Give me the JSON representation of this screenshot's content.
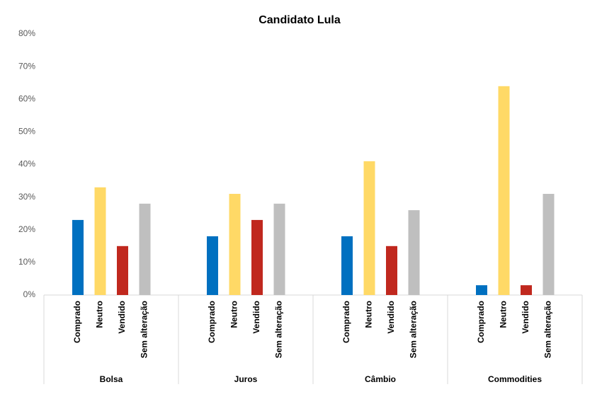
{
  "chart_data": {
    "type": "bar",
    "title": "Candidato Lula",
    "categories": [
      "Bolsa",
      "Juros",
      "Câmbio",
      "Commodities"
    ],
    "series": [
      {
        "name": "Comprado",
        "color": "#0070c0",
        "values": [
          23,
          18,
          18,
          3
        ]
      },
      {
        "name": "Neutro",
        "color": "#ffd966",
        "values": [
          33,
          31,
          41,
          64
        ]
      },
      {
        "name": "Vendido",
        "color": "#c0281e",
        "values": [
          15,
          23,
          15,
          3
        ]
      },
      {
        "name": "Sem alteração",
        "color": "#bfbfbf",
        "values": [
          28,
          28,
          26,
          31
        ]
      }
    ],
    "ylim": [
      0,
      80
    ],
    "yticks": [
      {
        "value": 0,
        "label": "0%"
      },
      {
        "value": 10,
        "label": "10%"
      },
      {
        "value": 20,
        "label": "20%"
      },
      {
        "value": 30,
        "label": "30%"
      },
      {
        "value": 40,
        "label": "40%"
      },
      {
        "value": 50,
        "label": "50%"
      },
      {
        "value": 60,
        "label": "60%"
      },
      {
        "value": 70,
        "label": "70%"
      },
      {
        "value": 80,
        "label": "80%"
      }
    ],
    "grid": false
  }
}
